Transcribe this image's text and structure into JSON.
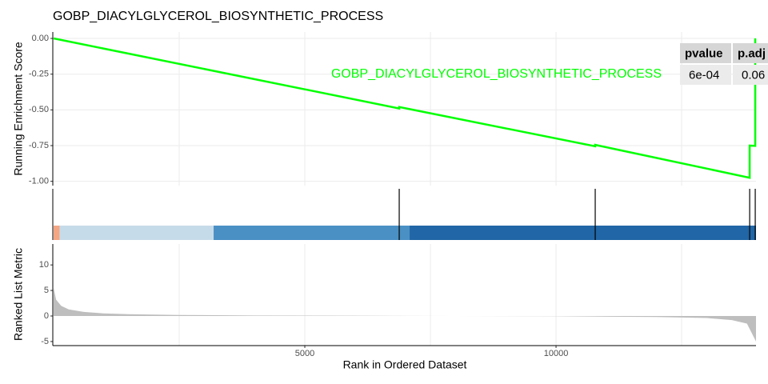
{
  "chart_data": [
    {
      "type": "line",
      "title": "GOBP_DIACYLGLYCEROL_BIOSYNTHETIC_PROCESS",
      "ylabel": "Running Enrichment Score",
      "x": [
        0,
        6879,
        6879,
        10780,
        10780,
        13854,
        13854,
        13965,
        13965
      ],
      "series": [
        {
          "name": "GOBP_DIACYLGLYCEROL_BIOSYNTHETIC_PROCESS",
          "color": "#00ff00",
          "values": [
            0,
            -0.49,
            -0.48,
            -0.755,
            -0.745,
            -0.975,
            -0.75,
            -0.752,
            0.0
          ]
        }
      ],
      "xlim": [
        0,
        13980
      ],
      "xgrid": [
        2500,
        5000,
        7500,
        10000,
        12500
      ],
      "ylim": [
        -1.03,
        0.045
      ],
      "yticks": [
        {
          "value": 0,
          "label": "0.00"
        },
        {
          "value": -0.25,
          "label": "-0.25"
        },
        {
          "value": -0.5,
          "label": "-0.50"
        },
        {
          "value": -0.75,
          "label": "-0.75"
        },
        {
          "value": -1,
          "label": "-1.00"
        }
      ],
      "grid": true
    },
    {
      "type": "barcode",
      "hits": [
        6879,
        10780,
        13854,
        13965
      ],
      "bands": [
        {
          "start": 0,
          "end": 119,
          "color": "#f4a582"
        },
        {
          "start": 119,
          "end": 3185,
          "color": "#c6dbe9"
        },
        {
          "start": 3185,
          "end": 7086,
          "color": "#4a90c4"
        },
        {
          "start": 7086,
          "end": 13980,
          "color": "#2166a6"
        }
      ],
      "xlim": [
        0,
        13980
      ]
    },
    {
      "type": "area",
      "ylabel": "Ranked List Metric",
      "xlabel": "Rank in Ordered Dataset",
      "color": "#bebebe",
      "x": [
        0,
        50,
        150,
        300,
        600,
        1000,
        1500,
        2500,
        4000,
        6000,
        8000,
        10000,
        12000,
        13000,
        13500,
        13800,
        13980
      ],
      "values": [
        5.5,
        3.2,
        2.0,
        1.3,
        0.8,
        0.5,
        0.35,
        0.2,
        0.1,
        0.05,
        0,
        -0.05,
        -0.2,
        -0.4,
        -0.8,
        -1.5,
        -5
      ],
      "xlim": [
        0,
        13980
      ],
      "ylim": [
        -5.8,
        14.1
      ],
      "yticks": [
        10,
        5,
        0,
        -5
      ],
      "xticks": [
        5000,
        10000
      ],
      "xgrid": [
        2500,
        5000,
        7500,
        10000,
        12500
      ]
    }
  ],
  "table": {
    "columns": [
      "pvalue",
      "p.adj"
    ],
    "rows": [
      [
        "6e-04",
        "0.06"
      ]
    ]
  }
}
